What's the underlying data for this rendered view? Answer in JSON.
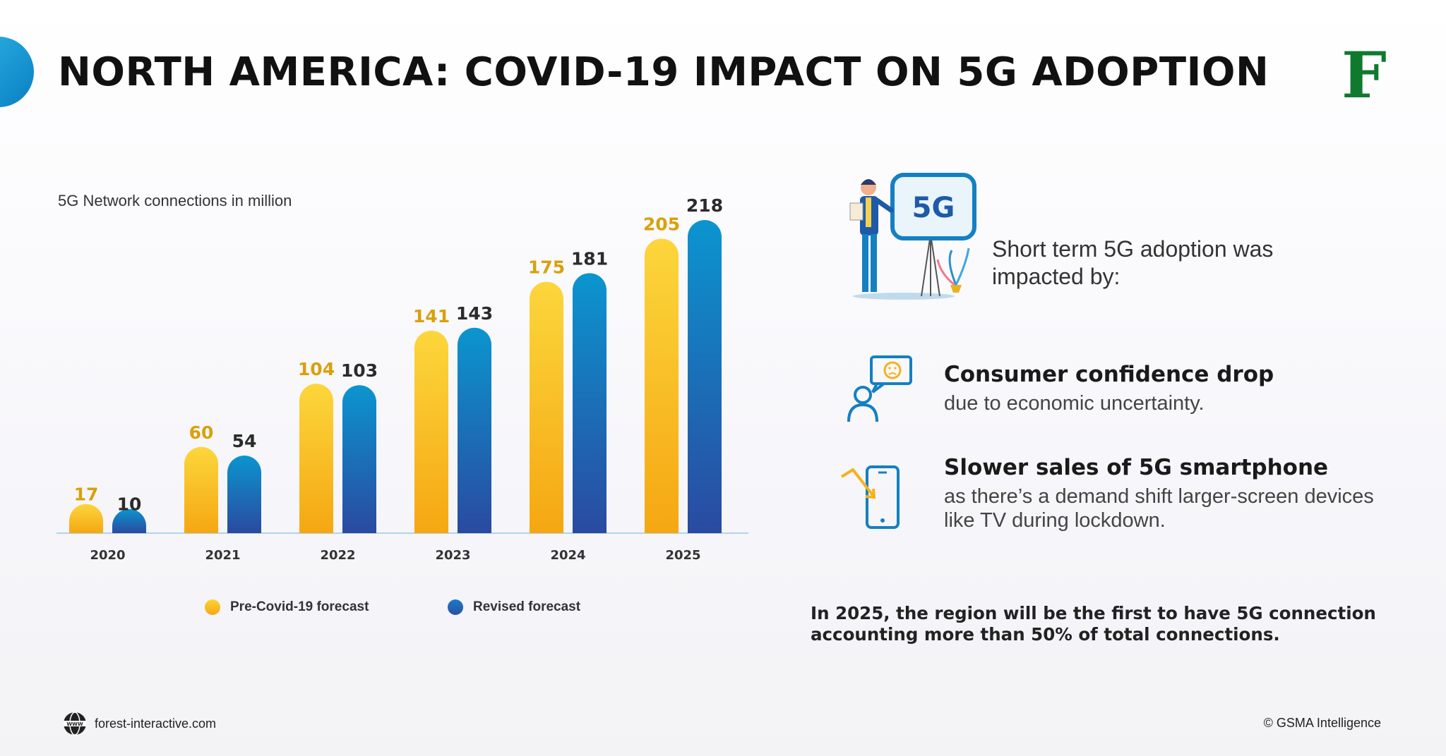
{
  "header": {
    "title": "NORTH AMERICA: COVID-19 IMPACT ON 5G ADOPTION",
    "logo_letter": "F"
  },
  "colors": {
    "pre_covid": "#f9bd24",
    "revised": "#1480c1",
    "accent_blue": "#0a7fc2",
    "logo_green": "#0f7a2e"
  },
  "chart_data": {
    "type": "bar",
    "subtitle": "5G Network connections in million",
    "categories": [
      "2020",
      "2021",
      "2022",
      "2023",
      "2024",
      "2025"
    ],
    "series": [
      {
        "name": "Pre-Covid-19 forecast",
        "values": [
          17,
          60,
          104,
          141,
          175,
          205
        ],
        "color": "#f9bd24",
        "label_color": "#d8a10c"
      },
      {
        "name": "Revised forecast",
        "values": [
          10,
          54,
          103,
          143,
          181,
          218
        ],
        "color": "#1480c1",
        "label_color": "#2b2b2b"
      }
    ],
    "ylim": [
      0,
      218
    ],
    "grid": false,
    "legend_position": "bottom"
  },
  "right_panel": {
    "illustration_label": "5G",
    "intro": "Short term 5G adoption was impacted by:",
    "points": [
      {
        "icon": "sad-chat-person-icon",
        "heading": "Consumer confidence drop",
        "body": "due to economic uncertainty."
      },
      {
        "icon": "phone-down-trend-icon",
        "heading": "Slower sales of 5G smartphone",
        "body": "as there’s a demand shift larger-screen devices like TV during lockdown."
      }
    ],
    "conclusion": "In 2025, the region will be the first to have 5G connection accounting more than 50% of total connections."
  },
  "footer": {
    "website": "forest-interactive.com",
    "copyright": "© GSMA Intelligence"
  }
}
